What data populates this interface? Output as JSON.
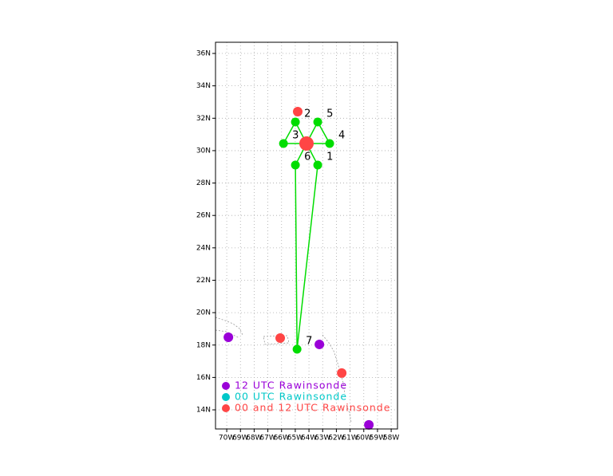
{
  "chart_data": {
    "type": "scatter",
    "xlim": [
      -70.82,
      -57.54
    ],
    "ylim": [
      12.82,
      36.69
    ],
    "xticks": [
      {
        "value": -70,
        "label": "70W"
      },
      {
        "value": -69,
        "label": "69W"
      },
      {
        "value": -68,
        "label": "68W"
      },
      {
        "value": -67,
        "label": "67W"
      },
      {
        "value": -66,
        "label": "66W"
      },
      {
        "value": -65,
        "label": "65W"
      },
      {
        "value": -64,
        "label": "64W"
      },
      {
        "value": -63,
        "label": "63W"
      },
      {
        "value": -62,
        "label": "62W"
      },
      {
        "value": -61,
        "label": "61W"
      },
      {
        "value": -60,
        "label": "60W"
      },
      {
        "value": -59,
        "label": "59W"
      },
      {
        "value": -58,
        "label": "58W"
      }
    ],
    "yticks": [
      {
        "value": 14,
        "label": "14N"
      },
      {
        "value": 16,
        "label": "16N"
      },
      {
        "value": 18,
        "label": "18N"
      },
      {
        "value": 20,
        "label": "20N"
      },
      {
        "value": 22,
        "label": "22N"
      },
      {
        "value": 24,
        "label": "24N"
      },
      {
        "value": 26,
        "label": "26N"
      },
      {
        "value": 28,
        "label": "28N"
      },
      {
        "value": 30,
        "label": "30N"
      },
      {
        "value": 32,
        "label": "32N"
      },
      {
        "value": 34,
        "label": "34N"
      },
      {
        "value": 36,
        "label": "36N"
      }
    ],
    "grid": true,
    "series": [
      {
        "name": "12 UTC Rawinsonde",
        "color": "#9a00d8",
        "x": [
          -69.88,
          -63.24,
          -59.63
        ],
        "values": [
          18.48,
          18.04,
          13.07
        ]
      },
      {
        "name": "00 UTC Rawinsonde",
        "color": "#00c8c8",
        "x": [],
        "values": []
      },
      {
        "name": "00 and 12 UTC Rawinsonde",
        "color": "#ff4545",
        "x": [
          -64.82,
          -64.18,
          -66.1,
          -61.61
        ],
        "values": [
          32.41,
          30.44,
          18.43,
          16.27
        ],
        "sizes": [
          6,
          9,
          6,
          6
        ]
      }
    ],
    "track": {
      "color": "#00dd00",
      "x": [
        -64.87,
        -63.36,
        -64.18,
        -64.99,
        -65.86,
        -62.49,
        -63.36,
        -64.18,
        -64.99,
        -64.87
      ],
      "values": [
        17.74,
        29.11,
        30.44,
        31.77,
        30.44,
        30.44,
        31.77,
        30.44,
        29.11,
        17.74
      ]
    },
    "sondes": {
      "labels": [
        "1",
        "2",
        "3",
        "4",
        "5",
        "6",
        "7"
      ],
      "x": [
        -63.36,
        -64.99,
        -65.86,
        -62.49,
        -63.36,
        -64.99,
        -64.87
      ],
      "values": [
        29.11,
        31.77,
        30.44,
        30.44,
        31.77,
        29.11,
        17.74
      ]
    }
  }
}
